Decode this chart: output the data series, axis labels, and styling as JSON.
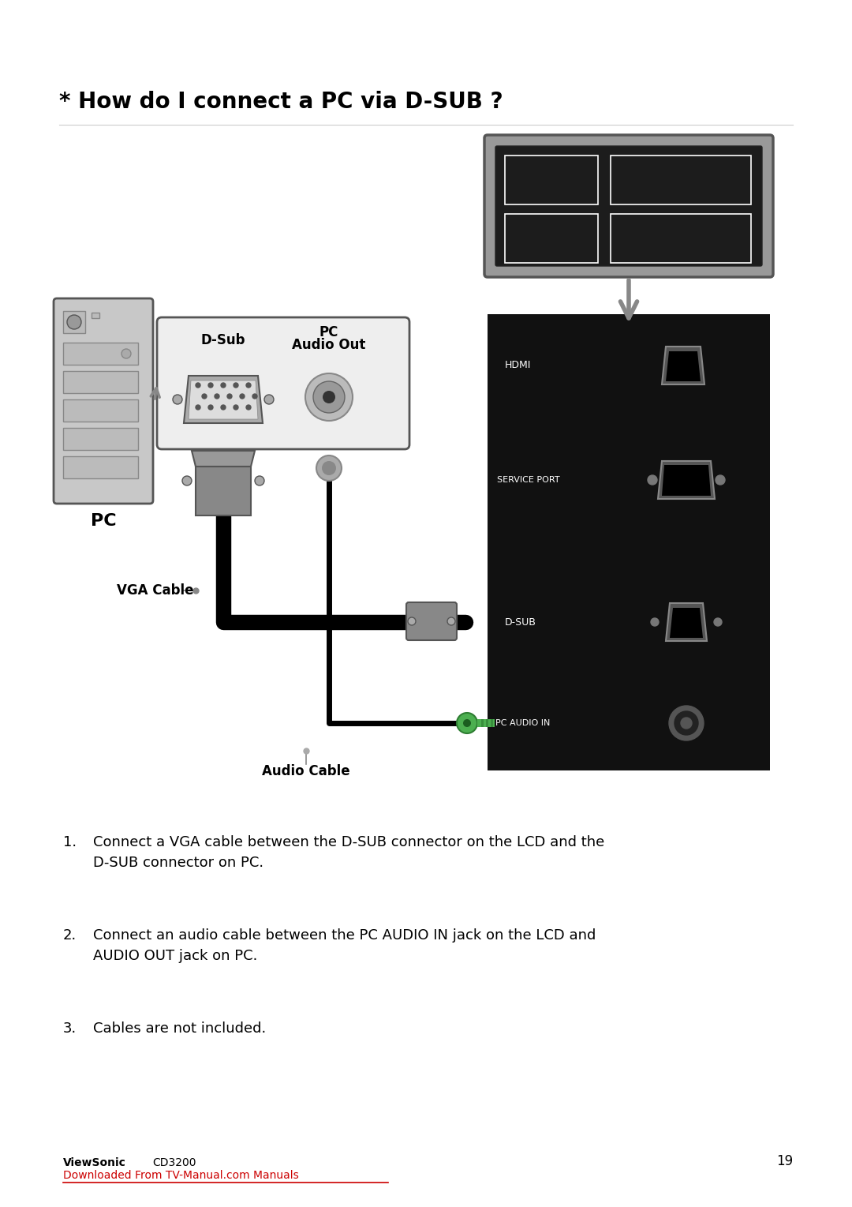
{
  "title": "* How do I connect a PC via D-SUB ?",
  "background_color": "#ffffff",
  "instructions": [
    {
      "num": "1.",
      "text": "Connect a VGA cable between the D-SUB connector on the LCD and the\nD-SUB connector on PC."
    },
    {
      "num": "2.",
      "text": "Connect an audio cable between the PC AUDIO IN jack on the LCD and\nAUDIO OUT jack on PC."
    },
    {
      "num": "3.",
      "text": "Cables are not included."
    }
  ],
  "footer_viewsonic": "ViewSonic",
  "footer_model": "CD3200",
  "footer_link": "Downloaded From TV-Manual.com Manuals",
  "footer_page": "19",
  "panel_hdmi": "HDMI",
  "panel_service": "SERVICE PORT",
  "panel_dsub": "D-SUB",
  "panel_audio": "PC AUDIO IN",
  "back_dsub": "D-Sub",
  "back_pc": "PC",
  "back_audio": "Audio Out",
  "label_vga": "VGA Cable",
  "label_audio": "Audio Cable",
  "label_pc": "PC"
}
